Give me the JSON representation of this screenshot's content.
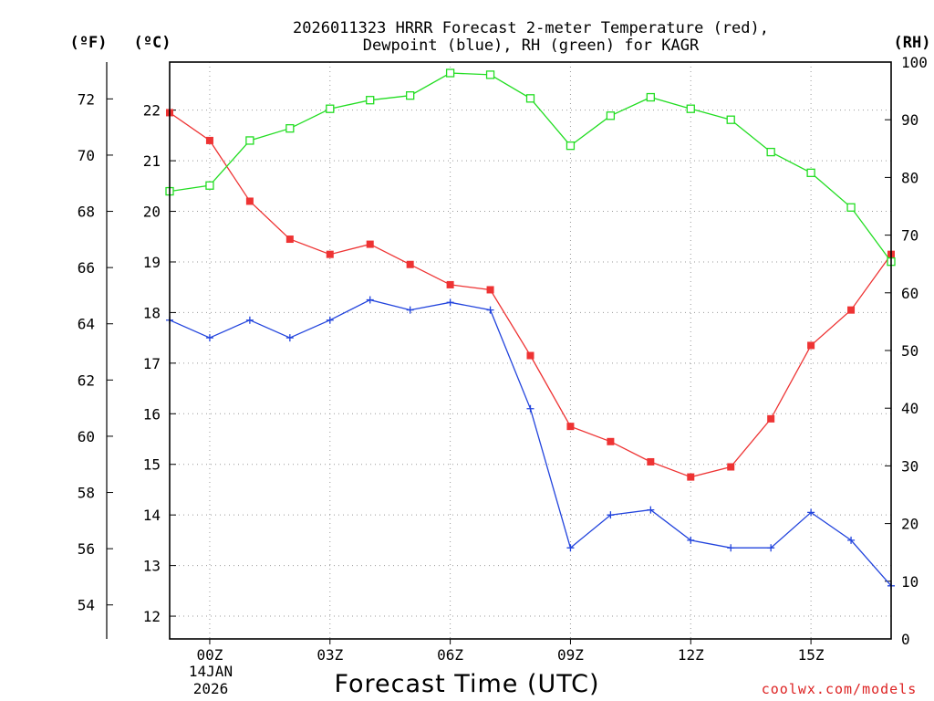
{
  "chart_data": {
    "type": "line",
    "title_lines": [
      "2026011323 HRRR Forecast 2-meter Temperature (red),",
      "Dewpoint (blue), RH (green) for KAGR"
    ],
    "xlabel": "Forecast Time (UTC)",
    "credit": "coolwx.com/models",
    "date_label": [
      "14JAN",
      "2026"
    ],
    "units": {
      "fahrenheit": "(ºF)",
      "celsius": "(ºC)",
      "rh": "(RH)"
    },
    "x_hours": [
      -1,
      0,
      1,
      2,
      3,
      4,
      5,
      6,
      7,
      8,
      9,
      10,
      11,
      12,
      13,
      14,
      15,
      16,
      17
    ],
    "xlim": [
      -1,
      17
    ],
    "x_ticks": [
      {
        "hour": 0,
        "label": "00Z"
      },
      {
        "hour": 3,
        "label": "03Z"
      },
      {
        "hour": 6,
        "label": "06Z"
      },
      {
        "hour": 9,
        "label": "09Z"
      },
      {
        "hour": 12,
        "label": "12Z"
      },
      {
        "hour": 15,
        "label": "15Z"
      }
    ],
    "celsius_axis": {
      "ylim": [
        11.55,
        22.95
      ],
      "ticks": [
        12,
        13,
        14,
        15,
        16,
        17,
        18,
        19,
        20,
        21,
        22
      ]
    },
    "fahrenheit_ticks": [
      54,
      56,
      58,
      60,
      62,
      64,
      66,
      68,
      70,
      72
    ],
    "rh_axis": {
      "ylim": [
        0,
        100
      ],
      "ticks": [
        0,
        10,
        20,
        30,
        40,
        50,
        60,
        70,
        80,
        90,
        100
      ]
    },
    "series": [
      {
        "name": "Temperature",
        "axis": "celsius",
        "color": "#ee3333",
        "marker": "filled-square",
        "values": [
          21.95,
          21.4,
          20.2,
          19.45,
          19.15,
          19.35,
          18.95,
          18.55,
          18.45,
          17.15,
          15.75,
          15.45,
          15.05,
          14.75,
          14.95,
          15.9,
          17.35,
          18.05,
          19.15
        ]
      },
      {
        "name": "Dewpoint",
        "axis": "celsius",
        "color": "#2244dd",
        "marker": "plus",
        "values": [
          17.85,
          17.5,
          17.85,
          17.5,
          17.85,
          18.25,
          18.05,
          18.2,
          18.05,
          16.1,
          13.35,
          14.0,
          14.1,
          13.5,
          13.35,
          13.35,
          14.05,
          13.5,
          12.6
        ]
      },
      {
        "name": "Relative Humidity",
        "axis": "rh",
        "color": "#22dd22",
        "marker": "open-square",
        "values": [
          77.6,
          78.6,
          86.4,
          88.5,
          91.9,
          93.4,
          94.2,
          98.1,
          97.8,
          93.7,
          85.5,
          90.7,
          93.9,
          91.9,
          90.0,
          84.4,
          80.8,
          74.8,
          65.4
        ]
      }
    ]
  }
}
